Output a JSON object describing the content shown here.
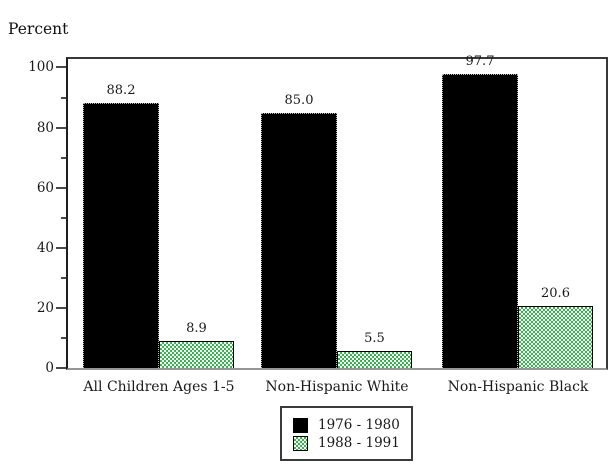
{
  "chart_data": {
    "type": "bar",
    "title": "",
    "ylabel": "Percent",
    "categories": [
      "All Children Ages 1-5",
      "Non-Hispanic White",
      "Non-Hispanic Black"
    ],
    "series": [
      {
        "name": "1976 - 1980",
        "values": [
          88.2,
          85.0,
          97.7
        ],
        "labels": [
          "88.2",
          "85.0",
          "97.7"
        ],
        "color": "#000000",
        "pattern": "solid-black"
      },
      {
        "name": "1988 - 1991",
        "values": [
          8.9,
          5.5,
          20.6
        ],
        "labels": [
          "8.9",
          "5.5",
          "20.6"
        ],
        "color": "#2fae46",
        "pattern": "green-with-white-dots"
      }
    ],
    "ylim": [
      0,
      100
    ],
    "yticks": [
      0,
      20,
      40,
      60,
      80,
      100
    ],
    "minor_yticks": [
      10,
      30,
      50,
      70,
      90
    ],
    "grid": false,
    "legend_position": "bottom-center",
    "frame": true
  }
}
